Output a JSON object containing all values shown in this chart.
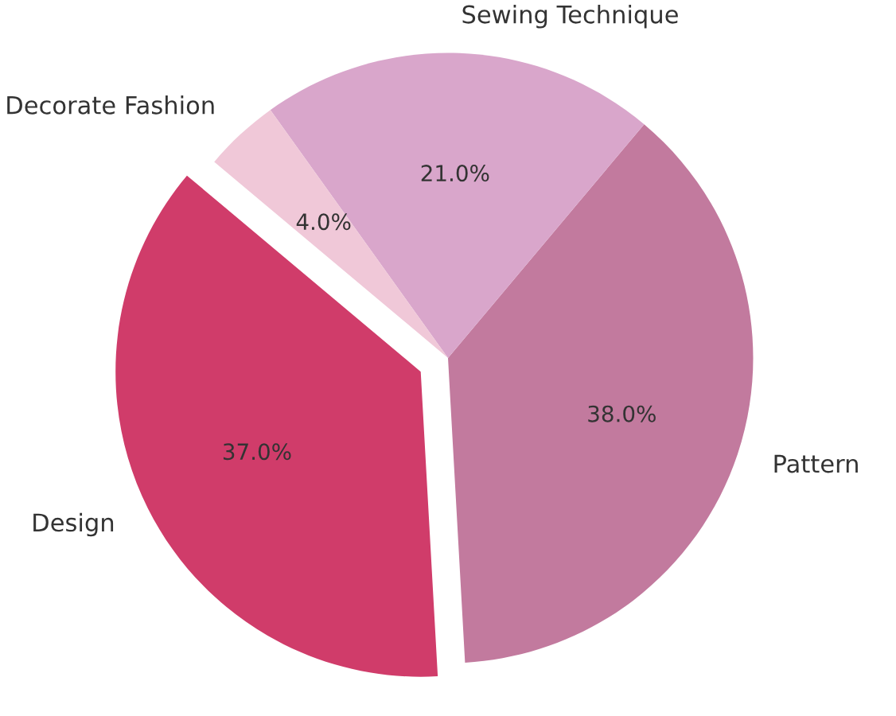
{
  "chart_data": {
    "type": "pie",
    "categories": [
      "Design",
      "Pattern",
      "Sewing Technique",
      "Decorate Fashion"
    ],
    "values": [
      37.0,
      38.0,
      21.0,
      4.0
    ],
    "colors": [
      "#d03c6a",
      "#c27a9e",
      "#d9a6cb",
      "#f0c8d8"
    ],
    "value_labels": [
      "37.0%",
      "38.0%",
      "21.0%",
      "4.0%"
    ]
  }
}
